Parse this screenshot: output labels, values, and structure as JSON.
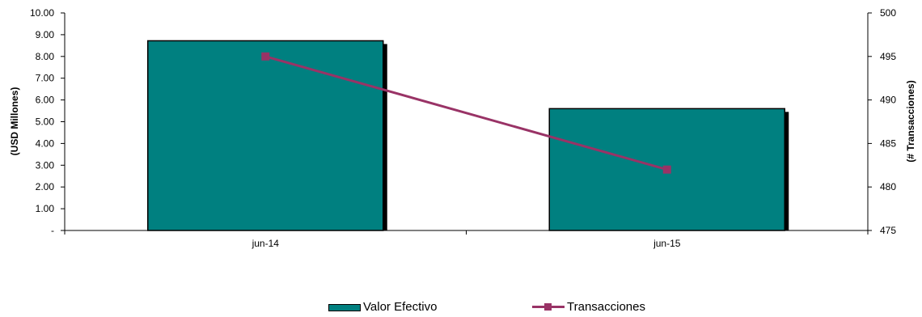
{
  "chart_data": {
    "type": "bar",
    "categories": [
      "jun-14",
      "jun-15"
    ],
    "series": [
      {
        "name": "Valor Efectivo",
        "type": "bar",
        "axis": "left",
        "values": [
          8.72,
          5.6
        ]
      },
      {
        "name": "Transacciones",
        "type": "line",
        "axis": "right",
        "values": [
          495,
          482
        ]
      }
    ],
    "y_left": {
      "label": "(USD Millones)",
      "ylim": [
        0,
        10
      ],
      "ticks": [
        0,
        1,
        2,
        3,
        4,
        5,
        6,
        7,
        8,
        9,
        10
      ],
      "tick_labels": [
        "-",
        "1.00",
        "2.00",
        "3.00",
        "4.00",
        "5.00",
        "6.00",
        "7.00",
        "8.00",
        "9.00",
        "10.00"
      ]
    },
    "y_right": {
      "label": "(# Transacciones)",
      "ylim": [
        475,
        500
      ],
      "ticks": [
        475,
        480,
        485,
        490,
        495,
        500
      ],
      "tick_labels": [
        "475",
        "480",
        "485",
        "490",
        "495",
        "500"
      ]
    },
    "grid": false,
    "legend": "bottom",
    "colors": {
      "bar": "#008080",
      "line": "#993366",
      "shadow": "#000000"
    }
  }
}
